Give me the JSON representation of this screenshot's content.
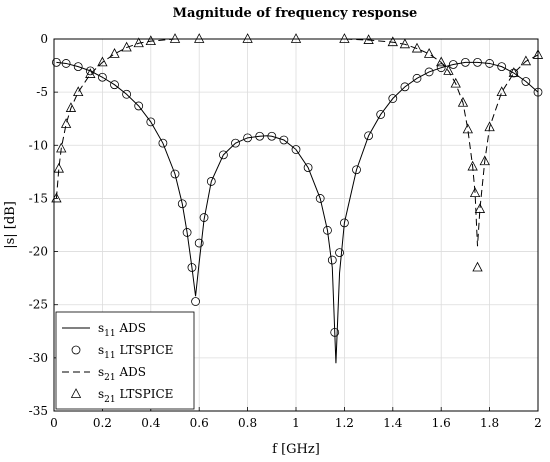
{
  "chart_data": {
    "type": "line",
    "title": "Magnitude of frequency response",
    "xlabel": "f [GHz]",
    "ylabel": "|s| [dB]",
    "xlim": [
      0,
      2
    ],
    "ylim": [
      -35,
      0
    ],
    "xticks": [
      "0",
      "0.2",
      "0.4",
      "0.6",
      "0.8",
      "1",
      "1.2",
      "1.4",
      "1.6",
      "1.8",
      "2"
    ],
    "yticks": [
      "0",
      "-5",
      "-10",
      "-15",
      "-20",
      "-25",
      "-30",
      "-35"
    ],
    "grid": true,
    "legend_position": "bottom-left",
    "legend": [
      {
        "sym": "s",
        "sub": "11",
        "label": "ADS"
      },
      {
        "sym": "s",
        "sub": "11",
        "label": "LTSPICE"
      },
      {
        "sym": "s",
        "sub": "21",
        "label": "ADS"
      },
      {
        "sym": "s",
        "sub": "21",
        "label": "LTSPICE"
      }
    ],
    "series": [
      {
        "style": "solid line",
        "x": [
          0.01,
          0.05,
          0.1,
          0.15,
          0.2,
          0.25,
          0.3,
          0.35,
          0.4,
          0.45,
          0.5,
          0.53,
          0.55,
          0.57,
          0.585,
          0.6,
          0.62,
          0.65,
          0.7,
          0.75,
          0.8,
          0.85,
          0.88,
          0.9,
          0.95,
          1.0,
          1.05,
          1.1,
          1.13,
          1.15,
          1.165,
          1.18,
          1.2,
          1.25,
          1.3,
          1.35,
          1.4,
          1.45,
          1.5,
          1.55,
          1.6,
          1.65,
          1.7,
          1.75,
          1.8,
          1.85,
          1.9,
          1.95,
          2.0
        ],
        "y": [
          -2.2,
          -2.3,
          -2.6,
          -3.0,
          -3.6,
          -4.3,
          -5.2,
          -6.3,
          -7.8,
          -9.8,
          -12.7,
          -15.5,
          -18.2,
          -21.5,
          -24.2,
          -21.0,
          -17.0,
          -13.4,
          -10.9,
          -9.8,
          -9.3,
          -9.15,
          -9.1,
          -9.15,
          -9.5,
          -10.4,
          -12.1,
          -15.0,
          -18.0,
          -21.5,
          -30.5,
          -22.0,
          -17.3,
          -12.3,
          -9.1,
          -7.1,
          -5.6,
          -4.5,
          -3.7,
          -3.1,
          -2.7,
          -2.4,
          -2.2,
          -2.2,
          -2.3,
          -2.6,
          -3.2,
          -4.0,
          -5.0
        ]
      },
      {
        "style": "circle markers",
        "x": [
          0.01,
          0.05,
          0.1,
          0.15,
          0.2,
          0.25,
          0.3,
          0.35,
          0.4,
          0.45,
          0.5,
          0.53,
          0.55,
          0.57,
          0.585,
          0.6,
          0.62,
          0.65,
          0.7,
          0.75,
          0.8,
          0.85,
          0.9,
          0.95,
          1.0,
          1.05,
          1.1,
          1.13,
          1.15,
          1.16,
          1.18,
          1.2,
          1.25,
          1.3,
          1.35,
          1.4,
          1.45,
          1.5,
          1.55,
          1.6,
          1.65,
          1.7,
          1.75,
          1.8,
          1.85,
          1.9,
          1.95,
          2.0
        ],
        "y": [
          -2.2,
          -2.3,
          -2.6,
          -3.0,
          -3.6,
          -4.3,
          -5.2,
          -6.3,
          -7.8,
          -9.8,
          -12.7,
          -15.5,
          -18.2,
          -21.5,
          -24.7,
          -19.2,
          -16.8,
          -13.4,
          -10.9,
          -9.8,
          -9.3,
          -9.15,
          -9.15,
          -9.5,
          -10.4,
          -12.1,
          -15.0,
          -18.0,
          -20.8,
          -27.6,
          -20.1,
          -17.3,
          -12.3,
          -9.1,
          -7.1,
          -5.6,
          -4.5,
          -3.7,
          -3.1,
          -2.7,
          -2.4,
          -2.2,
          -2.2,
          -2.3,
          -2.6,
          -3.2,
          -4.0,
          -5.0
        ]
      },
      {
        "style": "dashed line",
        "x": [
          0.01,
          0.02,
          0.03,
          0.05,
          0.07,
          0.1,
          0.15,
          0.2,
          0.25,
          0.3,
          0.35,
          0.4,
          0.5,
          0.6,
          0.8,
          1.0,
          1.2,
          1.3,
          1.4,
          1.45,
          1.5,
          1.55,
          1.6,
          1.63,
          1.66,
          1.69,
          1.71,
          1.73,
          1.74,
          1.75,
          1.76,
          1.78,
          1.8,
          1.85,
          1.9,
          1.95,
          2.0
        ],
        "y": [
          -15.0,
          -12.2,
          -10.3,
          -8.0,
          -6.5,
          -5.0,
          -3.3,
          -2.2,
          -1.4,
          -0.8,
          -0.4,
          -0.2,
          0.0,
          0.0,
          0.0,
          0.0,
          0.0,
          -0.1,
          -0.3,
          -0.5,
          -0.9,
          -1.4,
          -2.2,
          -3.0,
          -4.2,
          -6.0,
          -8.5,
          -12.0,
          -14.5,
          -19.5,
          -16.0,
          -11.5,
          -8.3,
          -5.0,
          -3.2,
          -2.1,
          -1.5
        ]
      },
      {
        "style": "triangle markers",
        "x": [
          0.01,
          0.02,
          0.03,
          0.05,
          0.07,
          0.1,
          0.15,
          0.2,
          0.25,
          0.3,
          0.35,
          0.4,
          0.5,
          0.6,
          0.8,
          1.0,
          1.2,
          1.3,
          1.4,
          1.45,
          1.5,
          1.55,
          1.6,
          1.63,
          1.66,
          1.69,
          1.71,
          1.73,
          1.74,
          1.75,
          1.76,
          1.78,
          1.8,
          1.85,
          1.9,
          1.95,
          2.0
        ],
        "y": [
          -15.0,
          -12.2,
          -10.3,
          -8.0,
          -6.5,
          -5.0,
          -3.3,
          -2.2,
          -1.4,
          -0.8,
          -0.4,
          -0.2,
          0.0,
          0.0,
          0.0,
          0.0,
          0.0,
          -0.1,
          -0.3,
          -0.5,
          -0.9,
          -1.4,
          -2.2,
          -3.0,
          -4.2,
          -6.0,
          -8.5,
          -12.0,
          -14.5,
          -21.5,
          -16.0,
          -11.5,
          -8.3,
          -5.0,
          -3.2,
          -2.1,
          -1.5
        ]
      }
    ]
  }
}
